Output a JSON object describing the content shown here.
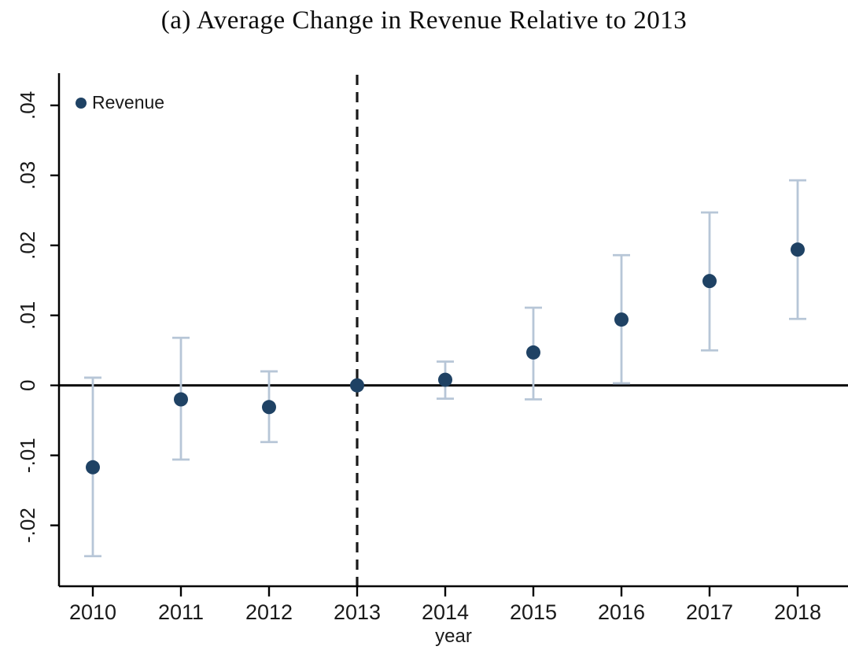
{
  "chart_data": {
    "type": "scatter",
    "title": "(a) Average Change in Revenue Relative to 2013",
    "xlabel": "year",
    "ylabel": "",
    "legend_label": "Revenue",
    "categories": [
      "2010",
      "2011",
      "2012",
      "2013",
      "2014",
      "2015",
      "2016",
      "2017",
      "2018"
    ],
    "series": [
      {
        "name": "Revenue",
        "estimates": [
          -0.0117,
          -0.002,
          -0.0031,
          0.0,
          0.0008,
          0.0047,
          0.0094,
          0.0149,
          0.0194
        ],
        "ci_low": [
          -0.0244,
          -0.0106,
          -0.0081,
          0.0,
          -0.0019,
          -0.002,
          0.0003,
          0.005,
          0.0095
        ],
        "ci_high": [
          0.0011,
          0.0068,
          0.002,
          0.0,
          0.0034,
          0.0111,
          0.0186,
          0.0247,
          0.0293
        ]
      }
    ],
    "reference_category": "2013",
    "zero_line_value": 0,
    "ylim": [
      -0.0287,
      0.0446
    ],
    "yticks": [
      0.04,
      0.03,
      0.02,
      0.01,
      0,
      -0.01,
      -0.02
    ],
    "ytick_labels": [
      ".04",
      ".03",
      ".02",
      ".01",
      "0",
      "-.01",
      "-.02"
    ],
    "grid": false,
    "legend_position": "top-left-inside",
    "colors": {
      "marker": "#1f4264",
      "ci_bar": "#b7c6d7",
      "axis": "#000000",
      "reference_line": "#1a1a1a",
      "zero_line": "#000000"
    }
  }
}
